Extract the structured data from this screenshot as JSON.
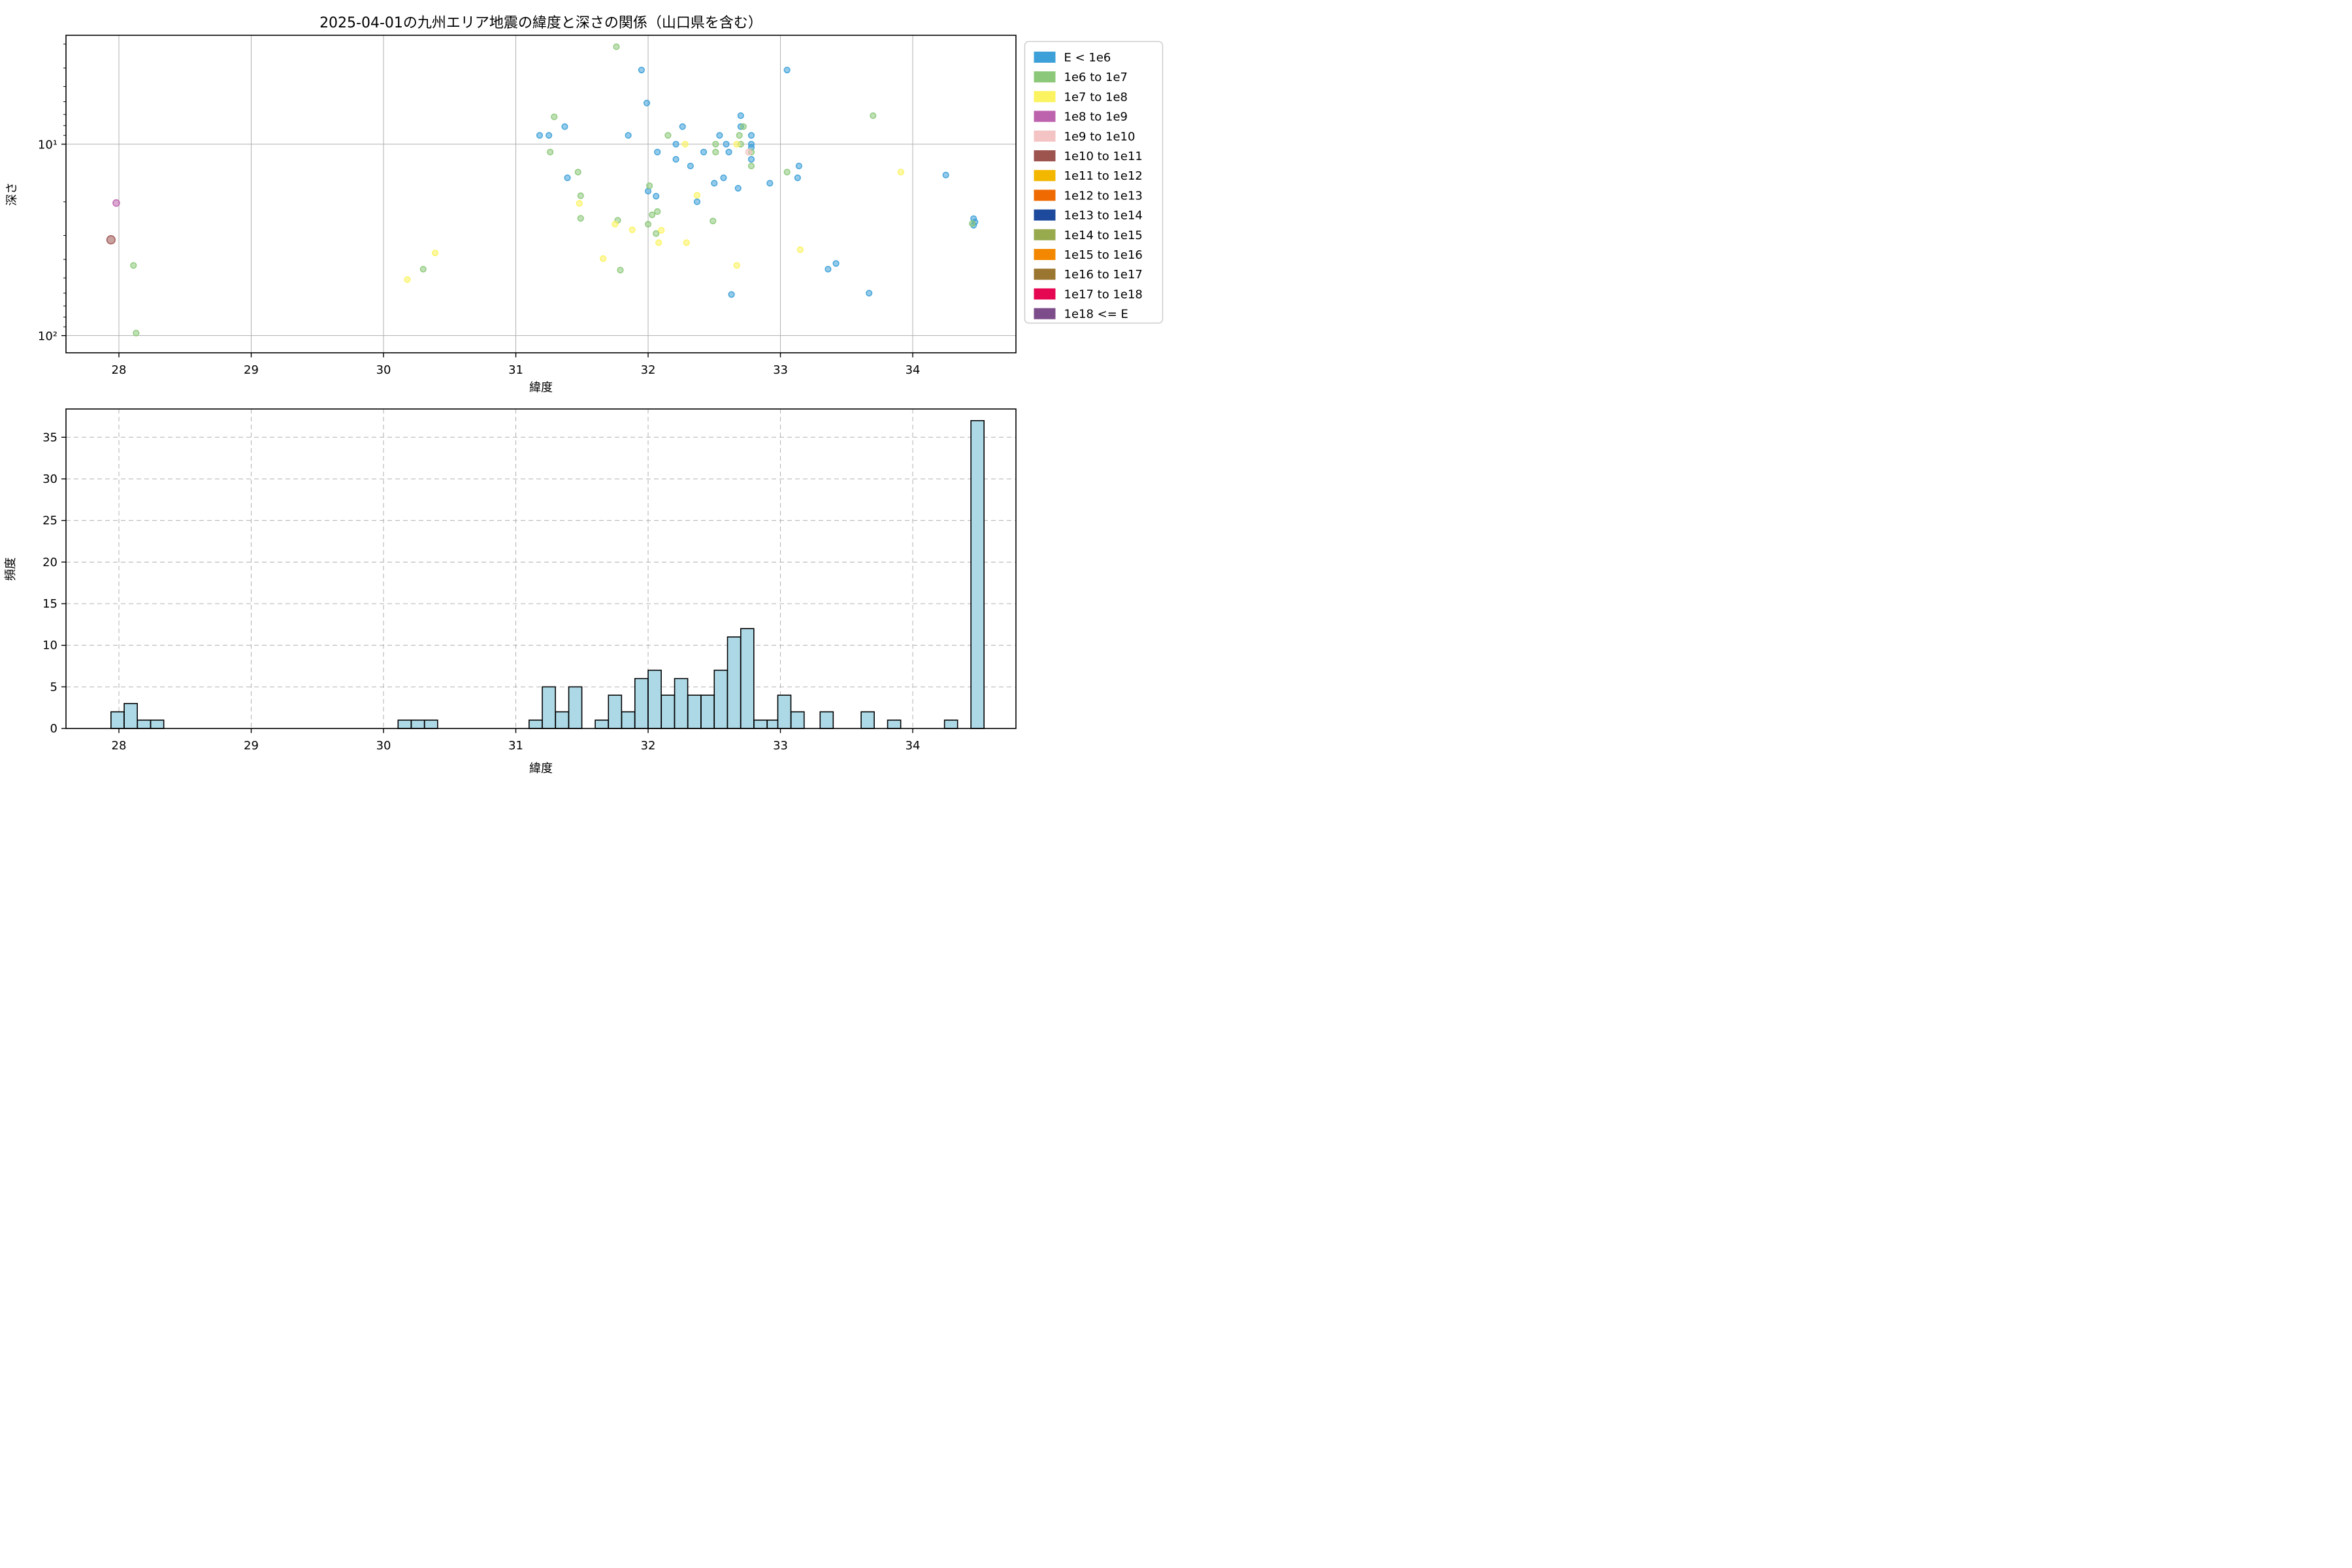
{
  "figure": {
    "title": "2025-04-01の九州エリア地震の緯度と深さの関係（山口県を含む）",
    "background": "#ffffff"
  },
  "legend": {
    "position": "upper-right-outside",
    "entries": [
      {
        "label": "E < 1e6",
        "color": "#3da0d9"
      },
      {
        "label": "1e6 to 1e7",
        "color": "#8cc87a"
      },
      {
        "label": "1e7 to 1e8",
        "color": "#fbf35f"
      },
      {
        "label": "1e8 to 1e9",
        "color": "#bd63ad"
      },
      {
        "label": "1e9 to 1e10",
        "color": "#f4c3c3"
      },
      {
        "label": "1e10 to 1e11",
        "color": "#9d534e"
      },
      {
        "label": "1e11 to 1e12",
        "color": "#f3b700"
      },
      {
        "label": "1e12 to 1e13",
        "color": "#ef6a00"
      },
      {
        "label": "1e13 to 1e14",
        "color": "#1e4a9e"
      },
      {
        "label": "1e14 to 1e15",
        "color": "#98aa4e"
      },
      {
        "label": "1e15 to 1e16",
        "color": "#f38800"
      },
      {
        "label": "1e16 to 1e17",
        "color": "#9b7630"
      },
      {
        "label": "1e17 to 1e18",
        "color": "#e50751"
      },
      {
        "label": "1e18 <= E",
        "color": "#7c4d8a"
      }
    ]
  },
  "chart_data": [
    {
      "type": "scatter",
      "title": "2025-04-01の九州エリア地震の緯度と深さの関係（山口県を含む）",
      "xlabel": "緯度",
      "ylabel": "深さ",
      "xlim": [
        27.6,
        34.78
      ],
      "xticks": [
        28,
        29,
        30,
        31,
        32,
        33,
        34
      ],
      "y_axis": {
        "scale": "log",
        "inverted": true,
        "depth_range": [
          2.7,
          123
        ],
        "tick_values": [
          10,
          100
        ],
        "tick_labels": [
          "10¹",
          "10²"
        ],
        "minor_ticks": [
          3,
          4,
          5,
          6,
          7,
          8,
          9,
          20,
          30,
          40,
          50,
          60,
          70,
          80,
          90
        ]
      },
      "grid": {
        "style": "solid",
        "color": "#b0b0b0"
      },
      "marker": {
        "default_radius": 4.3,
        "fill_opacity": 0.55,
        "stroke_width": 1.5
      },
      "series": [
        {
          "name": "E < 1e6",
          "color": "#3da0d9",
          "radius": 4.3,
          "points": [
            [
              31.18,
              9.0
            ],
            [
              31.25,
              9.0
            ],
            [
              31.37,
              8.1
            ],
            [
              31.39,
              15.0
            ],
            [
              31.85,
              9.0
            ],
            [
              31.95,
              4.1
            ],
            [
              31.99,
              6.1
            ],
            [
              32.0,
              17.6
            ],
            [
              32.06,
              18.7
            ],
            [
              32.07,
              11.0
            ],
            [
              32.21,
              10.0
            ],
            [
              32.21,
              12.0
            ],
            [
              32.26,
              8.1
            ],
            [
              32.32,
              13.0
            ],
            [
              32.37,
              20.0
            ],
            [
              32.42,
              11.0
            ],
            [
              32.5,
              16.0
            ],
            [
              32.54,
              9.0
            ],
            [
              32.57,
              15.0
            ],
            [
              32.59,
              10.0
            ],
            [
              32.61,
              11.0
            ],
            [
              32.63,
              61.0
            ],
            [
              32.68,
              17.0
            ],
            [
              32.7,
              7.1
            ],
            [
              32.7,
              8.1
            ],
            [
              32.78,
              9.0
            ],
            [
              32.78,
              10.0
            ],
            [
              32.78,
              10.4
            ],
            [
              32.78,
              12.0
            ],
            [
              32.92,
              16.0
            ],
            [
              33.05,
              4.1
            ],
            [
              33.13,
              15.0
            ],
            [
              33.14,
              13.0
            ],
            [
              33.36,
              45.0
            ],
            [
              33.42,
              42.0
            ],
            [
              33.67,
              60.0
            ],
            [
              34.25,
              14.5
            ],
            [
              34.46,
              24.5
            ],
            [
              34.46,
              26.5
            ],
            [
              34.47,
              25.5
            ]
          ]
        },
        {
          "name": "1e6 to 1e7",
          "color": "#8cc87a",
          "radius": 4.3,
          "points": [
            [
              28.11,
              43.0
            ],
            [
              28.13,
              97.0
            ],
            [
              30.3,
              45.0
            ],
            [
              31.26,
              11.0
            ],
            [
              31.29,
              7.2
            ],
            [
              31.47,
              14.0
            ],
            [
              31.49,
              18.6
            ],
            [
              31.49,
              24.4
            ],
            [
              31.76,
              3.1
            ],
            [
              31.77,
              25.0
            ],
            [
              31.79,
              45.5
            ],
            [
              32.0,
              26.2
            ],
            [
              32.01,
              16.5
            ],
            [
              32.03,
              23.4
            ],
            [
              32.06,
              29.3
            ],
            [
              32.07,
              22.5
            ],
            [
              32.15,
              9.0
            ],
            [
              32.49,
              25.2
            ],
            [
              32.51,
              10.0
            ],
            [
              32.51,
              11.0
            ],
            [
              32.69,
              9.0
            ],
            [
              32.7,
              10.0
            ],
            [
              32.72,
              8.1
            ],
            [
              32.78,
              11.0
            ],
            [
              32.78,
              13.0
            ],
            [
              33.05,
              14.0
            ],
            [
              33.7,
              7.1
            ],
            [
              34.45,
              26.0
            ]
          ]
        },
        {
          "name": "1e7 to 1e8",
          "color": "#fbf35f",
          "radius": 4.3,
          "points": [
            [
              30.18,
              51.0
            ],
            [
              30.39,
              37.0
            ],
            [
              31.48,
              20.4
            ],
            [
              31.66,
              39.6
            ],
            [
              31.75,
              26.2
            ],
            [
              31.88,
              28.0
            ],
            [
              32.08,
              32.7
            ],
            [
              32.1,
              28.2
            ],
            [
              32.28,
              10.0
            ],
            [
              32.29,
              32.7
            ],
            [
              32.37,
              18.5
            ],
            [
              32.67,
              10.0
            ],
            [
              32.67,
              43.0
            ],
            [
              33.15,
              35.6
            ],
            [
              33.91,
              14.0
            ]
          ]
        },
        {
          "name": "1e9 to 1e10",
          "color": "#f4c3c3",
          "radius": 4.5,
          "points": [
            [
              32.76,
              11.0
            ]
          ]
        },
        {
          "name": "1e8 to 1e9",
          "color": "#bd63ad",
          "radius": 5.0,
          "points": [
            [
              27.98,
              20.3
            ]
          ]
        },
        {
          "name": "1e10 to 1e11",
          "color": "#9d534e",
          "radius": 6.3,
          "points": [
            [
              27.94,
              31.6
            ]
          ]
        }
      ]
    },
    {
      "type": "histogram",
      "xlabel": "緯度",
      "ylabel": "頻度",
      "xlim": [
        27.6,
        34.78
      ],
      "xticks": [
        28,
        29,
        30,
        31,
        32,
        33,
        34
      ],
      "ylim": [
        0,
        38.4
      ],
      "yticks": [
        0,
        5,
        10,
        15,
        20,
        25,
        30,
        35
      ],
      "grid": {
        "style": "dashed",
        "color": "#b0b0b0"
      },
      "bar_color": "#add8e6",
      "bar_edge_color": "#000000",
      "bin_width": 0.099,
      "bars": [
        {
          "x": 27.94,
          "h": 2
        },
        {
          "x": 28.04,
          "h": 3
        },
        {
          "x": 28.14,
          "h": 1
        },
        {
          "x": 28.24,
          "h": 1
        },
        {
          "x": 30.11,
          "h": 1
        },
        {
          "x": 30.21,
          "h": 1
        },
        {
          "x": 30.31,
          "h": 1
        },
        {
          "x": 31.1,
          "h": 1
        },
        {
          "x": 31.2,
          "h": 5
        },
        {
          "x": 31.3,
          "h": 2
        },
        {
          "x": 31.4,
          "h": 5
        },
        {
          "x": 31.6,
          "h": 1
        },
        {
          "x": 31.7,
          "h": 4
        },
        {
          "x": 31.8,
          "h": 2
        },
        {
          "x": 31.9,
          "h": 6
        },
        {
          "x": 32.0,
          "h": 7
        },
        {
          "x": 32.1,
          "h": 4
        },
        {
          "x": 32.2,
          "h": 6
        },
        {
          "x": 32.3,
          "h": 4
        },
        {
          "x": 32.4,
          "h": 4
        },
        {
          "x": 32.5,
          "h": 7
        },
        {
          "x": 32.6,
          "h": 11
        },
        {
          "x": 32.7,
          "h": 12
        },
        {
          "x": 32.8,
          "h": 1
        },
        {
          "x": 32.9,
          "h": 1
        },
        {
          "x": 32.98,
          "h": 4
        },
        {
          "x": 33.08,
          "h": 2
        },
        {
          "x": 33.3,
          "h": 2
        },
        {
          "x": 33.61,
          "h": 2
        },
        {
          "x": 33.81,
          "h": 1
        },
        {
          "x": 34.24,
          "h": 1
        },
        {
          "x": 34.44,
          "h": 37
        }
      ]
    }
  ]
}
